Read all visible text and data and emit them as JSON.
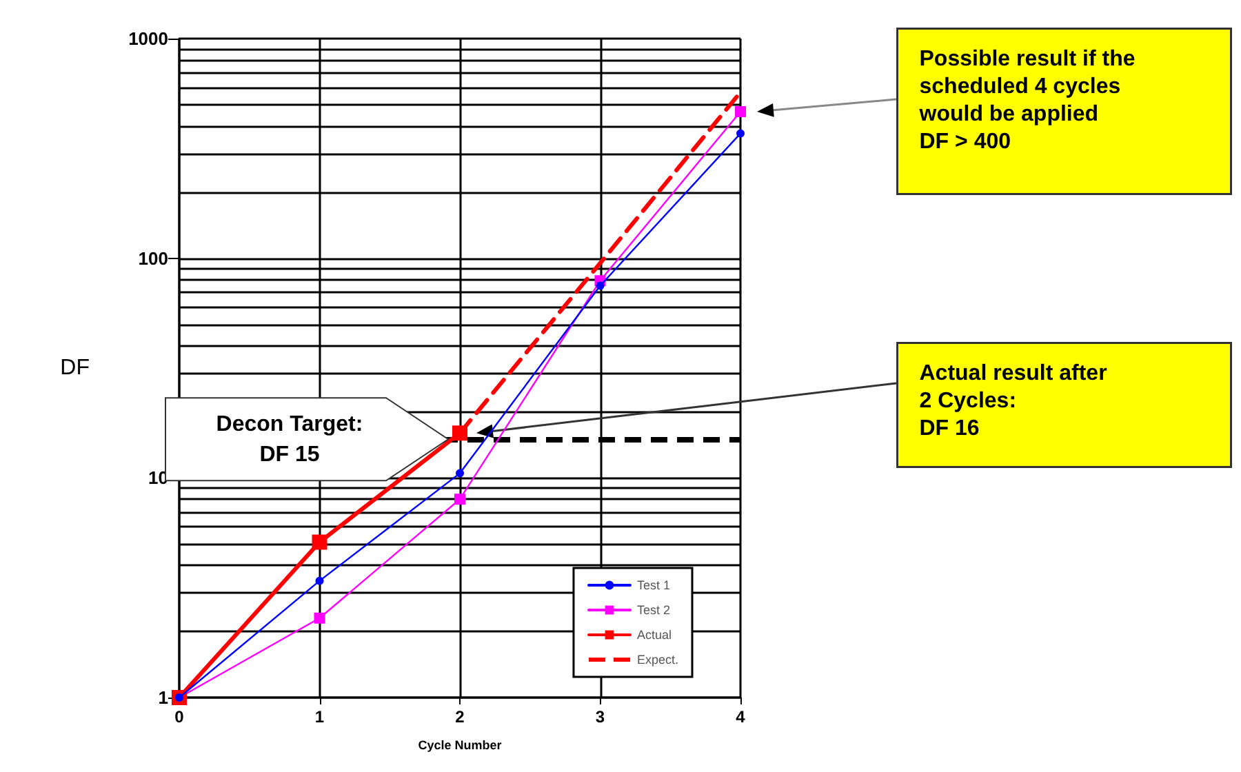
{
  "chart_data": {
    "type": "line",
    "xlabel": "Cycle Number",
    "ylabel": "DF",
    "x": [
      0,
      1,
      2,
      3,
      4
    ],
    "series": [
      {
        "name": "Test 1",
        "color": "#0000ff",
        "marker": "circle",
        "line_style": "solid",
        "values": [
          1,
          3.4,
          10.5,
          75,
          370
        ]
      },
      {
        "name": "Test 2",
        "color": "#ff00ff",
        "marker": "square",
        "line_style": "solid",
        "values": [
          1,
          2.3,
          8,
          79,
          465
        ]
      },
      {
        "name": "Actual",
        "color": "#ff0000",
        "marker": "square",
        "line_style": "solid",
        "values": [
          1,
          5.1,
          16,
          null,
          null
        ]
      },
      {
        "name": "Expect.",
        "color": "#ff0000",
        "marker": "none",
        "line_style": "dashed",
        "x": [
          2,
          3,
          4
        ],
        "values": [
          16,
          95,
          570
        ]
      }
    ],
    "log": "y",
    "xlim": [
      0,
      4
    ],
    "xticks": [
      0,
      1,
      2,
      3,
      4
    ],
    "ylim": [
      1,
      1000
    ],
    "yticks": [
      1,
      10,
      100,
      1000
    ],
    "grid": true,
    "legend": "bottom right",
    "ref_lines": [
      {
        "axis": "y",
        "value": 15,
        "label": "Decon Target:\nDF 15",
        "color": "#000000",
        "line_style": "dashed"
      }
    ],
    "annotations": [
      "Possible result if the\nscheduled 4 cycles\nwould be applied\nDF > 400",
      "Actual result after\n2 Cycles:\nDF 16"
    ]
  }
}
